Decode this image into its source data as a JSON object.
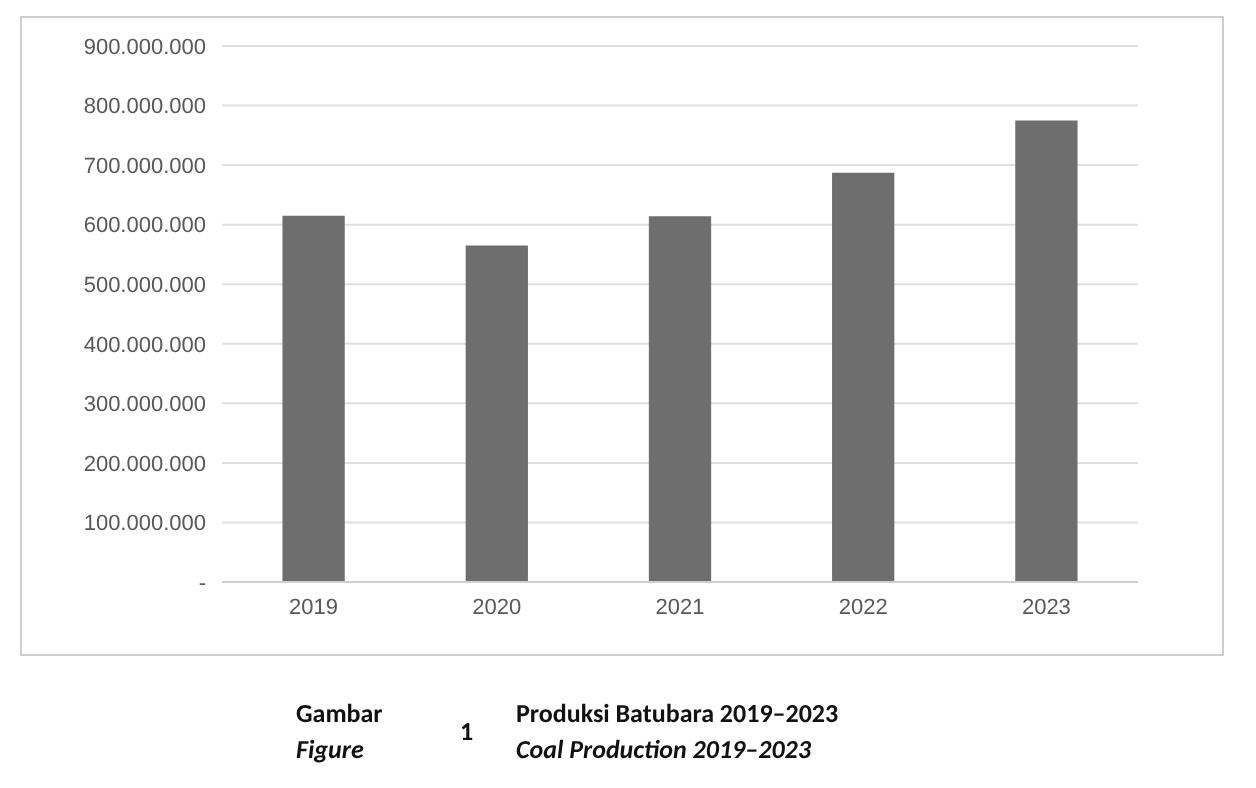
{
  "chart_data": {
    "type": "bar",
    "title": "Produksi Batubara 2019–2023",
    "subtitle": "Coal Production 2019–2023",
    "annotations": [
      "Gambar",
      "Figure",
      "1"
    ],
    "categories": [
      "2019",
      "2020",
      "2021",
      "2022",
      "2023"
    ],
    "values": [
      615000000,
      565000000,
      614000000,
      687000000,
      775000000
    ],
    "color": "#6e6e6e",
    "ylim": [
      0,
      900000000
    ],
    "yticks": [
      {
        "value": 0,
        "label": "-"
      },
      {
        "value": 100000000,
        "label": "100.000.000"
      },
      {
        "value": 200000000,
        "label": "200.000.000"
      },
      {
        "value": 300000000,
        "label": "300.000.000"
      },
      {
        "value": 400000000,
        "label": "400.000.000"
      },
      {
        "value": 500000000,
        "label": "500.000.000"
      },
      {
        "value": 600000000,
        "label": "600.000.000"
      },
      {
        "value": 700000000,
        "label": "700.000.000"
      },
      {
        "value": 800000000,
        "label": "800.000.000"
      },
      {
        "value": 900000000,
        "label": "900.000.000"
      }
    ],
    "grid": "y"
  }
}
